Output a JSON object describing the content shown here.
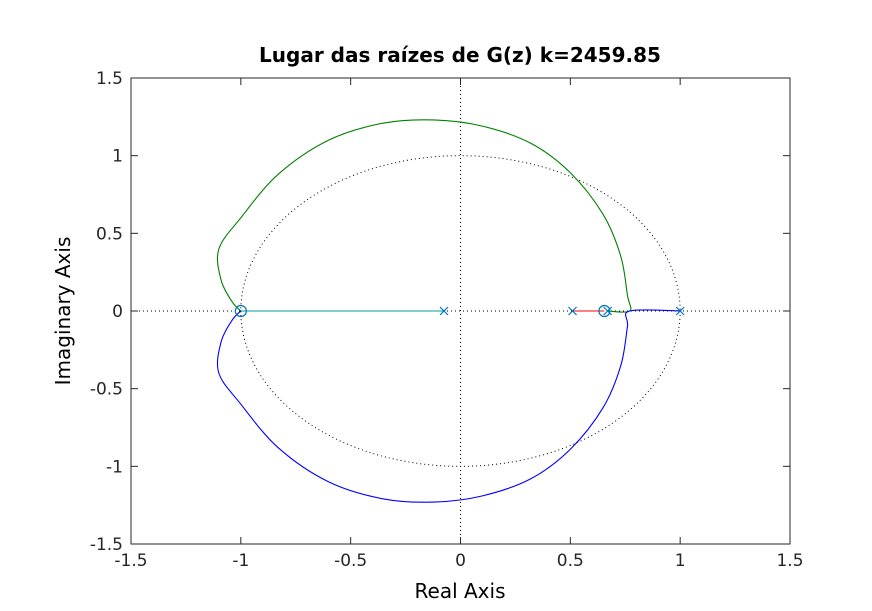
{
  "chart_data": {
    "type": "line",
    "title": "Lugar das raízes de G(z) k=2459.85",
    "xlabel": "Real Axis",
    "ylabel": "Imaginary Axis",
    "xlim": [
      -1.5,
      1.5
    ],
    "ylim": [
      -1.5,
      1.5
    ],
    "xticks": [
      "-1.5",
      "-1",
      "-0.5",
      "0",
      "0.5",
      "1",
      "1.5"
    ],
    "yticks": [
      "-1.5",
      "-1",
      "-0.5",
      "0",
      "0.5",
      "1",
      "1.5"
    ],
    "grid": false,
    "box": true,
    "reference_lines": {
      "unit_circle": true,
      "x_axis_dotted": true,
      "y_axis_dotted": true,
      "color": "#000000"
    },
    "poles": [
      [
        -0.075,
        0
      ],
      [
        0.51,
        0
      ],
      [
        0.67,
        0
      ],
      [
        1.0,
        0
      ]
    ],
    "zeros": [
      [
        -1.0,
        0
      ],
      [
        0.655,
        0
      ]
    ],
    "marker_color": "#0072bd",
    "series": [
      {
        "color": "#00a0a0",
        "points": [
          [
            -0.075,
            0
          ],
          [
            -1.0,
            0
          ]
        ]
      },
      {
        "color": "#ff0000",
        "points": [
          [
            0.51,
            0
          ],
          [
            0.655,
            0
          ]
        ]
      },
      {
        "color": "#008000",
        "points": [
          [
            0.67,
            0
          ],
          [
            0.77,
            0
          ],
          [
            0.76,
            0.1
          ],
          [
            0.73,
            0.35
          ],
          [
            0.65,
            0.62
          ],
          [
            0.5,
            0.89
          ],
          [
            0.32,
            1.08
          ],
          [
            0.1,
            1.19
          ],
          [
            -0.12,
            1.23
          ],
          [
            -0.35,
            1.21
          ],
          [
            -0.6,
            1.1
          ],
          [
            -0.83,
            0.88
          ],
          [
            -1.0,
            0.6
          ],
          [
            -1.1,
            0.4
          ],
          [
            -1.09,
            0.2
          ],
          [
            -1.04,
            0.06
          ],
          [
            -1.0,
            0
          ]
        ]
      },
      {
        "color": "#0000ff",
        "points": [
          [
            1.0,
            0
          ],
          [
            0.77,
            0
          ],
          [
            0.76,
            -0.1
          ],
          [
            0.73,
            -0.35
          ],
          [
            0.65,
            -0.62
          ],
          [
            0.5,
            -0.89
          ],
          [
            0.32,
            -1.08
          ],
          [
            0.1,
            -1.19
          ],
          [
            -0.12,
            -1.23
          ],
          [
            -0.35,
            -1.21
          ],
          [
            -0.6,
            -1.1
          ],
          [
            -0.83,
            -0.88
          ],
          [
            -1.0,
            -0.6
          ],
          [
            -1.1,
            -0.4
          ],
          [
            -1.09,
            -0.2
          ],
          [
            -1.04,
            -0.06
          ],
          [
            -1.0,
            0
          ]
        ]
      }
    ]
  }
}
